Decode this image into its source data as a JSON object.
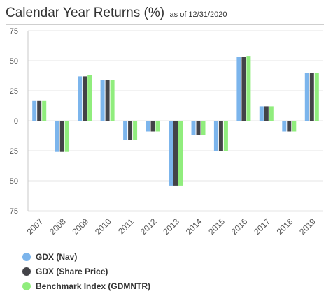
{
  "header": {
    "title": "Calendar Year Returns (%)",
    "as_of": "as of 12/31/2020"
  },
  "chart_data": {
    "type": "bar",
    "title": "Calendar Year Returns (%)",
    "subtitle": "as of 12/31/2020",
    "categories": [
      "2007",
      "2008",
      "2009",
      "2010",
      "2011",
      "2012",
      "2013",
      "2014",
      "2015",
      "2016",
      "2017",
      "2018",
      "2019"
    ],
    "series": [
      {
        "name": "GDX (Nav)",
        "color": "#7cb5ec",
        "values": [
          17,
          -26,
          37,
          34,
          -16,
          -9,
          -54,
          -12,
          -25,
          53,
          12,
          -9,
          40
        ]
      },
      {
        "name": "GDX (Share Price)",
        "color": "#434348",
        "values": [
          17,
          -26,
          37,
          34,
          -16,
          -9,
          -54,
          -12,
          -25,
          53,
          12,
          -9,
          40
        ]
      },
      {
        "name": "Benchmark Index (GDMNTR)",
        "color": "#90ed7d",
        "values": [
          17,
          -26,
          38,
          34,
          -16,
          -9,
          -54,
          -12,
          -25,
          54,
          12,
          -9,
          40
        ]
      }
    ],
    "yticks": [
      "75",
      "50",
      "25",
      "0",
      "25",
      "50",
      "75"
    ],
    "ylim": [
      -75,
      75
    ],
    "grid": "horizontal",
    "legend": "bottom-left"
  }
}
